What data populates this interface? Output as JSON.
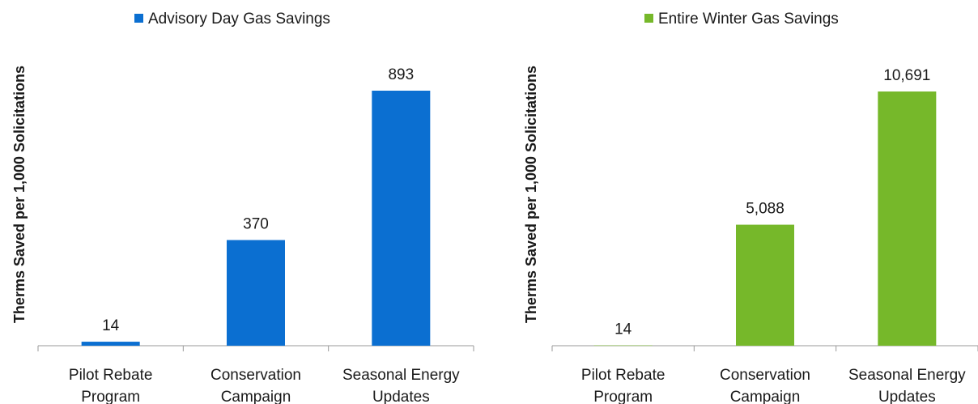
{
  "chart_data": [
    {
      "type": "bar",
      "legend": "Advisory Day Gas Savings",
      "legend_position": "top",
      "ylabel": "Therms Saved per 1,000 Solicitations",
      "categories": [
        [
          "Pilot Rebate",
          "Program"
        ],
        [
          "Conservation",
          "Campaign"
        ],
        [
          "Seasonal Energy",
          "Updates"
        ]
      ],
      "values": [
        14,
        370,
        893
      ],
      "value_labels": [
        "14",
        "370",
        "893"
      ],
      "ylim": [
        0,
        893
      ],
      "color": "#0b6fd1",
      "grid": false
    },
    {
      "type": "bar",
      "legend": "Entire Winter Gas Savings",
      "legend_position": "top",
      "ylabel": "Therms Saved per 1,000 Solicitations",
      "categories": [
        [
          "Pilot Rebate",
          "Program"
        ],
        [
          "Conservation",
          "Campaign"
        ],
        [
          "Seasonal Energy",
          "Updates"
        ]
      ],
      "values": [
        14,
        5088,
        10691
      ],
      "value_labels": [
        "14",
        "5,088",
        "10,691"
      ],
      "ylim": [
        0,
        10691
      ],
      "color": "#76b82a",
      "grid": false
    }
  ]
}
